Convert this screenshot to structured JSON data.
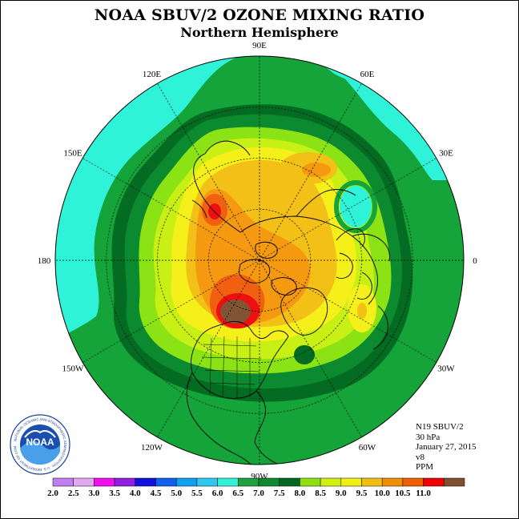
{
  "header": {
    "title": "NOAA SBUV/2 OZONE MIXING RATIO",
    "subtitle": "Northern Hemisphere"
  },
  "map": {
    "projection": "polar-stereographic-north",
    "longitude_labels": [
      {
        "text": "90E"
      },
      {
        "text": "60E"
      },
      {
        "text": "30E"
      },
      {
        "text": "0"
      },
      {
        "text": "30W"
      },
      {
        "text": "60W"
      },
      {
        "text": "90W"
      },
      {
        "text": "120W"
      },
      {
        "text": "150W"
      },
      {
        "text": "180"
      },
      {
        "text": "150E"
      },
      {
        "text": "120E"
      }
    ]
  },
  "info": {
    "satellite": "N19 SBUV/2",
    "level": "30 hPa",
    "date": "January 27, 2015",
    "version": "v8",
    "units": "PPM"
  },
  "logo": {
    "text": "NOAA",
    "ring_text": "NATIONAL OCEANIC AND ATMOSPHERIC ADMINISTRATION · U.S. DEPARTMENT OF COMMERCE"
  },
  "colorbar": {
    "labels": [
      "2.0",
      "2.5",
      "3.0",
      "3.5",
      "4.0",
      "4.5",
      "5.0",
      "5.5",
      "6.0",
      "6.5",
      "7.0",
      "7.5",
      "8.0",
      "8.5",
      "9.0",
      "9.5",
      "10.0",
      "10.5",
      "11.0"
    ],
    "colors": [
      "#c07ef0",
      "#e0a8f0",
      "#f010f0",
      "#9020e0",
      "#1010e0",
      "#1060f0",
      "#10a0f0",
      "#30c8f0",
      "#30f0d8",
      "#20a040",
      "#108830",
      "#006820",
      "#90e010",
      "#d0f010",
      "#f0f010",
      "#f0c010",
      "#f09000",
      "#f06000",
      "#f00000",
      "#805030"
    ]
  },
  "colors": {
    "cyan": "#2ff3d8",
    "green_light": "#14a43a",
    "green_mid": "#0b8a2f",
    "green_dark": "#046b22",
    "lime": "#8be214",
    "yellow_green": "#c8f014",
    "yellow": "#f5f01a",
    "gold": "#f3c018",
    "orange": "#f59a10",
    "orange_red": "#f06010",
    "red": "#ee1010",
    "brown": "#7f5535"
  }
}
